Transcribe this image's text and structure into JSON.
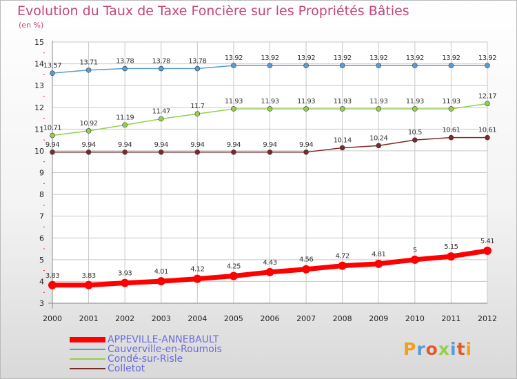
{
  "header": {
    "title": "Evolution du Taux de Taxe Foncière sur les Propriétés Bâties",
    "unit": "(en %)"
  },
  "brand": {
    "name": "Proxiti"
  },
  "colors": {
    "title": "#c4457a",
    "legend_text": "#6a6ae0",
    "grid": "#c8c8c8",
    "axis": "#888888"
  },
  "chart_data": {
    "type": "line",
    "title": "Evolution du Taux de Taxe Foncière sur les Propriétés Bâties",
    "ylabel": "(en %)",
    "xlabel": "",
    "x": [
      "2000",
      "2001",
      "2002",
      "2003",
      "2004",
      "2005",
      "2006",
      "2007",
      "2008",
      "2009",
      "2010",
      "2011",
      "2012"
    ],
    "ylim": [
      3,
      15
    ],
    "yticks": [
      3,
      4,
      5,
      6,
      7,
      8,
      9,
      10,
      11,
      12,
      13,
      14,
      15
    ],
    "grid": true,
    "legend_position": "bottom-left",
    "series": [
      {
        "name": "APPEVILLE-ANNEBAULT",
        "color": "#ff0000",
        "values": [
          3.83,
          3.83,
          3.93,
          4.01,
          4.12,
          4.25,
          4.43,
          4.56,
          4.72,
          4.81,
          5,
          5.15,
          5.41
        ]
      },
      {
        "name": "Cauverville-en-Roumois",
        "color": "#5a9bd5",
        "values": [
          13.57,
          13.71,
          13.78,
          13.78,
          13.78,
          13.92,
          13.92,
          13.92,
          13.92,
          13.92,
          13.92,
          13.92,
          13.92
        ]
      },
      {
        "name": "Condé-sur-Risle",
        "color": "#92d050",
        "values": [
          10.71,
          10.92,
          11.19,
          11.47,
          11.7,
          11.93,
          11.93,
          11.93,
          11.93,
          11.93,
          11.93,
          11.93,
          12.17
        ]
      },
      {
        "name": "Colletot",
        "color": "#7b2a2a",
        "values": [
          9.94,
          9.94,
          9.94,
          9.94,
          9.94,
          9.94,
          9.94,
          9.94,
          10.14,
          10.24,
          10.5,
          10.61,
          10.61
        ]
      }
    ]
  }
}
